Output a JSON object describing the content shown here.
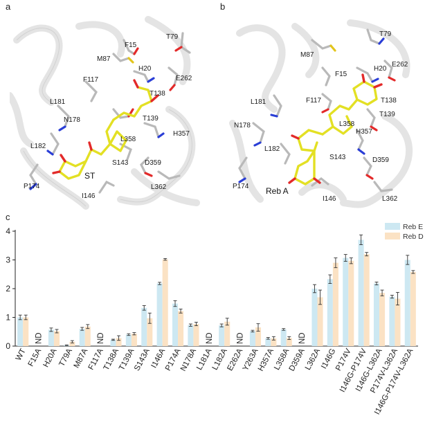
{
  "panels": {
    "a": {
      "letter": "a",
      "ligand_label": "ST",
      "residues": [
        "F15",
        "T79",
        "M87",
        "H20",
        "E262",
        "F117",
        "T138",
        "L181",
        "T139",
        "N178",
        "H357",
        "L358",
        "L182",
        "ST",
        "S143",
        "D359",
        "P174",
        "I146",
        "L362"
      ]
    },
    "b": {
      "letter": "b",
      "ligand_label": "Reb A",
      "residues": [
        "T79",
        "M87",
        "E262",
        "H20",
        "F15",
        "F117",
        "T138",
        "L181",
        "T139",
        "N178",
        "L358",
        "H357",
        "L182",
        "D359",
        "S143",
        "P174",
        "L362",
        "I146"
      ]
    },
    "c": {
      "letter": "c"
    }
  },
  "colors": {
    "reb_e": "#cde8f2",
    "reb_d": "#fbe2c4",
    "error_bar": "#333333",
    "ligand": "#e3e024",
    "protein_cartoon": "#e6e6e6",
    "residue_carbon": "#b9b9b9",
    "oxygen": "#e32a2a",
    "nitrogen": "#2a3ed6",
    "sulfur": "#e3c51c"
  },
  "chart_data": {
    "type": "bar",
    "categories": [
      "WT",
      "F15A",
      "H20A",
      "T79A",
      "M87A",
      "F117A",
      "T138A",
      "T139A",
      "S143A",
      "I146A",
      "P174A",
      "N178A",
      "L181A",
      "L182A",
      "E262A",
      "Y263A",
      "H357A",
      "L358A",
      "D359A",
      "L362A",
      "I146G",
      "P174V",
      "I146G-P174V",
      "I146G-L362A",
      "P174V-L362A",
      "I146G-P174V-L362A"
    ],
    "series": [
      {
        "name": "Reb E",
        "values": [
          1.0,
          null,
          0.57,
          0.03,
          0.6,
          null,
          0.22,
          0.4,
          1.33,
          2.18,
          1.48,
          0.73,
          null,
          0.72,
          null,
          0.52,
          0.27,
          0.58,
          null,
          2.0,
          2.33,
          3.07,
          3.7,
          2.18,
          1.72,
          3.0
        ],
        "errors": [
          0.08,
          null,
          0.06,
          0.01,
          0.05,
          null,
          0.02,
          0.03,
          0.08,
          0.04,
          0.1,
          0.04,
          null,
          0.05,
          null,
          0.03,
          0.03,
          0.03,
          null,
          0.14,
          0.15,
          0.12,
          0.17,
          0.05,
          0.05,
          0.16
        ]
      },
      {
        "name": "Reb D",
        "values": [
          1.0,
          null,
          0.52,
          0.15,
          0.68,
          null,
          0.28,
          0.43,
          0.97,
          3.02,
          1.22,
          0.77,
          null,
          0.85,
          null,
          0.65,
          0.27,
          0.28,
          null,
          1.7,
          2.9,
          2.97,
          3.2,
          1.85,
          1.65,
          2.58
        ],
        "errors": [
          0.08,
          null,
          0.06,
          0.04,
          0.07,
          null,
          0.08,
          0.04,
          0.18,
          0.03,
          0.07,
          0.06,
          null,
          0.12,
          null,
          0.13,
          0.06,
          0.05,
          null,
          0.25,
          0.17,
          0.1,
          0.06,
          0.1,
          0.22,
          0.05
        ]
      }
    ],
    "nd_label": "ND",
    "nd_categories": [
      "F15A",
      "F117A",
      "L181A",
      "E262A",
      "D359A"
    ],
    "yticks": [
      0,
      1,
      2,
      3,
      4
    ],
    "ylim": [
      0,
      4
    ],
    "xlabel": "",
    "ylabel": "",
    "legend": [
      "Reb E",
      "Reb D"
    ],
    "legend_position": "top-right",
    "grid": false
  }
}
